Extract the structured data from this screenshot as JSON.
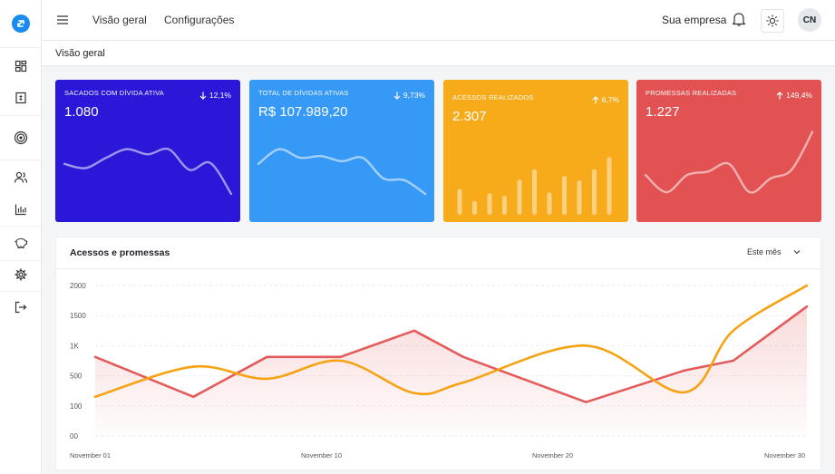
{
  "topbar": {
    "nav": [
      "Visão geral",
      "Configurações"
    ],
    "company": "Sua empresa",
    "avatar_initials": "CN"
  },
  "breadcrumb": "Visão geral",
  "sidebar": {
    "icons": [
      "dashboard-icon",
      "invoice-icon",
      "target-icon",
      "users-icon",
      "bar-chart-icon",
      "piggy-bank-icon",
      "settings-icon",
      "logout-icon"
    ]
  },
  "cards": [
    {
      "label": "SACADOS COM DÍVIDA ATIVA",
      "value": "1.080",
      "delta": "12,1%",
      "direction": "down",
      "color": "#2b17d8",
      "spark_type": "line",
      "spark": [
        0.55,
        0.5,
        0.62,
        0.72,
        0.66,
        0.72,
        0.48,
        0.56,
        0.2
      ]
    },
    {
      "label": "TOTAL DE DÍVIDAS ATIVAS",
      "value": "R$ 107.989,20",
      "delta": "9,73%",
      "direction": "down",
      "color": "#3599f5",
      "spark_type": "line",
      "spark": [
        0.55,
        0.72,
        0.62,
        0.64,
        0.58,
        0.62,
        0.38,
        0.36,
        0.2
      ]
    },
    {
      "label": "ACESSOS REALIZADOS",
      "value": "2.307",
      "delta": "6,7%",
      "direction": "up",
      "color": "#f7ab1a",
      "spark_type": "bar",
      "spark": [
        0.3,
        0.16,
        0.25,
        0.22,
        0.41,
        0.53,
        0.26,
        0.45,
        0.4,
        0.53,
        0.67
      ]
    },
    {
      "label": "PROMESSAS REALIZADAS",
      "value": "1.227",
      "delta": "149,4%",
      "direction": "up",
      "color": "#e25252",
      "spark_type": "line",
      "spark": [
        0.42,
        0.22,
        0.42,
        0.46,
        0.55,
        0.22,
        0.38,
        0.48,
        0.92
      ]
    }
  ],
  "chart_panel": {
    "title": "Acessos e promessas",
    "filter": "Este mês"
  },
  "chart_data": {
    "type": "line",
    "y_ticks": [
      "00",
      "100",
      "500",
      "1K",
      "1500",
      "2000"
    ],
    "x_tick_labels": [
      "November 01",
      "November 10",
      "November 20",
      "November 30"
    ],
    "x": [
      1,
      5,
      8,
      11,
      14,
      16,
      21,
      25,
      27,
      30
    ],
    "series": [
      {
        "color": "#e35b5b",
        "fill": true,
        "values": [
          1050,
          520,
          1050,
          1050,
          1400,
          1050,
          450,
          870,
          1000,
          1720
        ]
      },
      {
        "color": "#f6a313",
        "fill": false,
        "values": [
          520,
          920,
          760,
          1000,
          570,
          710,
          1200,
          580,
          1400,
          2000
        ]
      }
    ],
    "ylim": [
      0,
      2000
    ],
    "grid": true
  },
  "colors": {
    "accent": "#1a8cf0"
  }
}
